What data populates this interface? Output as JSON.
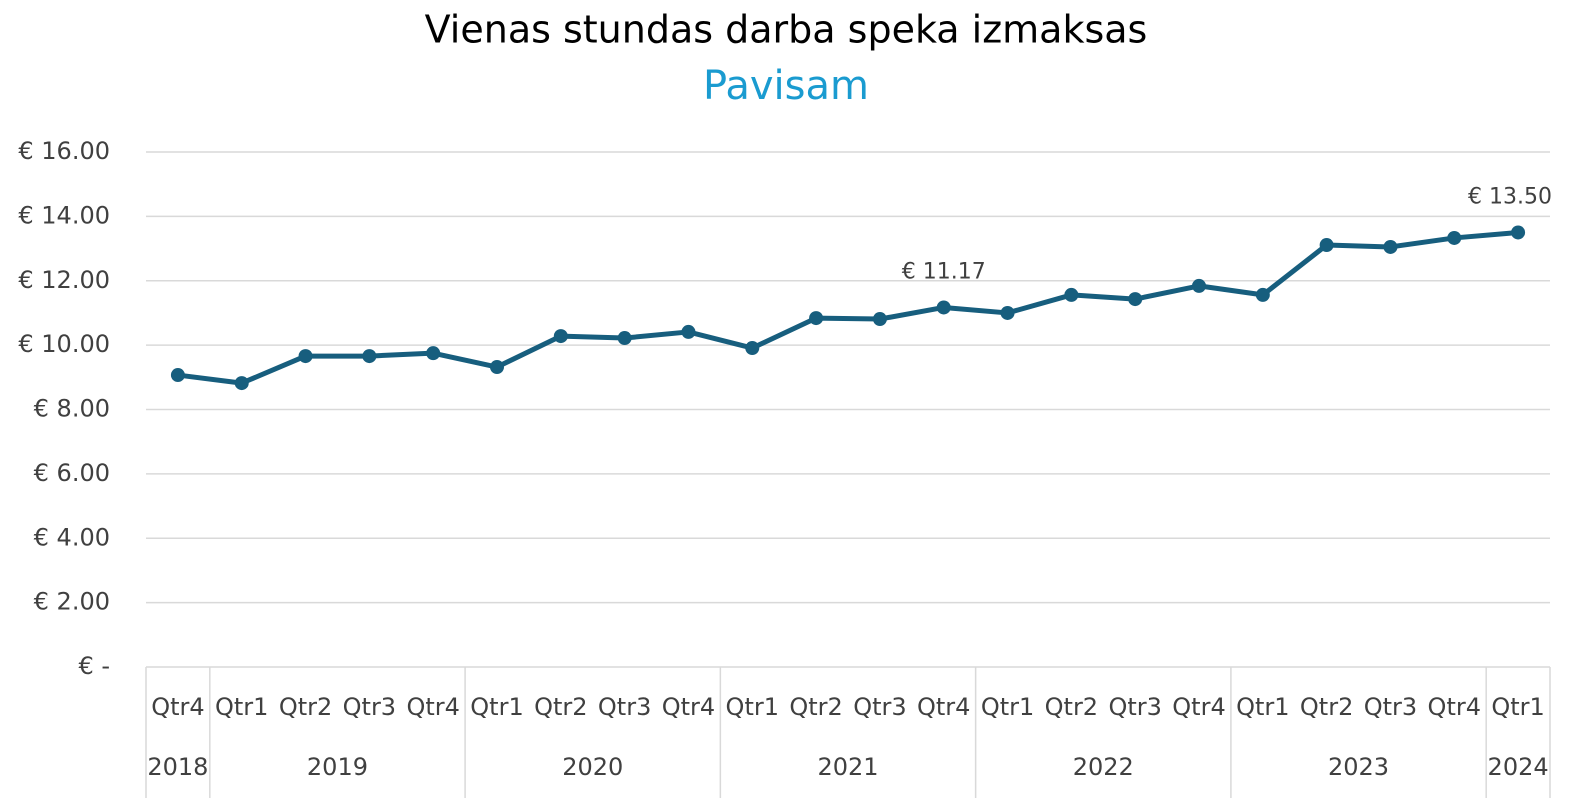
{
  "chart_data": {
    "type": "line",
    "title": "Vienas stundas darba speka izmaksas",
    "subtitle": "Pavisam",
    "groups": [
      {
        "name": "2018",
        "categories": [
          "Qtr4"
        ]
      },
      {
        "name": "2019",
        "categories": [
          "Qtr1",
          "Qtr2",
          "Qtr3",
          "Qtr4"
        ]
      },
      {
        "name": "2020",
        "categories": [
          "Qtr1",
          "Qtr2",
          "Qtr3",
          "Qtr4"
        ]
      },
      {
        "name": "2021",
        "categories": [
          "Qtr1",
          "Qtr2",
          "Qtr3",
          "Qtr4"
        ]
      },
      {
        "name": "2022",
        "categories": [
          "Qtr1",
          "Qtr2",
          "Qtr3",
          "Qtr4"
        ]
      },
      {
        "name": "2023",
        "categories": [
          "Qtr1",
          "Qtr2",
          "Qtr3",
          "Qtr4"
        ]
      },
      {
        "name": "2024",
        "categories": [
          "Qtr1"
        ]
      }
    ],
    "values": [
      9.07,
      8.82,
      9.66,
      9.66,
      9.75,
      9.32,
      10.28,
      10.22,
      10.41,
      9.91,
      10.84,
      10.81,
      11.17,
      11.0,
      11.56,
      11.43,
      11.84,
      11.56,
      13.11,
      13.05,
      13.33,
      13.5
    ],
    "value_labels": [
      null,
      null,
      null,
      null,
      null,
      null,
      null,
      null,
      null,
      null,
      null,
      null,
      "€ 11.17",
      null,
      null,
      null,
      null,
      null,
      null,
      null,
      null,
      "€ 13.50"
    ],
    "color": "#175e7e",
    "ylim": [
      0,
      16
    ],
    "yticks": [
      {
        "value": 0,
        "label": "€ -"
      },
      {
        "value": 2,
        "label": "€ 2.00"
      },
      {
        "value": 4,
        "label": "€ 4.00"
      },
      {
        "value": 6,
        "label": "€ 6.00"
      },
      {
        "value": 8,
        "label": "€ 8.00"
      },
      {
        "value": 10,
        "label": "€ 10.00"
      },
      {
        "value": 12,
        "label": "€ 12.00"
      },
      {
        "value": 14,
        "label": "€ 14.00"
      },
      {
        "value": 16,
        "label": "€ 16.00"
      }
    ],
    "grid": true
  }
}
